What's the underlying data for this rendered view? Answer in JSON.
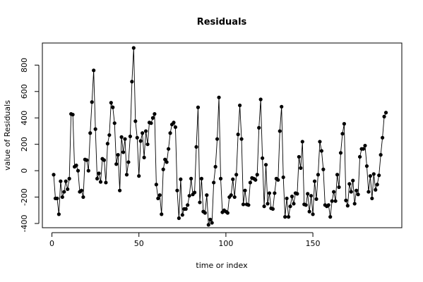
{
  "chart_data": {
    "type": "line",
    "title": "Residuals",
    "xlabel": "time or index",
    "ylabel": "value of Residuals",
    "xlim": [
      1,
      193
    ],
    "ylim": [
      -400,
      930
    ],
    "x_ticks": [
      0,
      50,
      100,
      150
    ],
    "y_ticks": [
      -400,
      -200,
      0,
      200,
      400,
      600,
      800
    ],
    "grid": false,
    "line_color": "#000000",
    "point_color": "#000000",
    "y_values": [
      -30,
      -210,
      -210,
      -330,
      -80,
      -200,
      -160,
      -80,
      -140,
      -60,
      430,
      425,
      30,
      40,
      0,
      -160,
      -150,
      -200,
      85,
      80,
      0,
      285,
      520,
      760,
      315,
      -60,
      -20,
      -85,
      90,
      80,
      -90,
      205,
      270,
      515,
      480,
      360,
      50,
      120,
      -150,
      255,
      140,
      240,
      -30,
      65,
      260,
      675,
      930,
      375,
      250,
      -40,
      225,
      285,
      100,
      300,
      200,
      365,
      360,
      400,
      430,
      -105,
      -210,
      -185,
      -330,
      10,
      85,
      65,
      165,
      285,
      350,
      365,
      330,
      -150,
      -360,
      -65,
      -335,
      -290,
      -290,
      -260,
      -190,
      -60,
      -180,
      -165,
      180,
      480,
      -240,
      -60,
      -310,
      -320,
      -185,
      -410,
      -370,
      -395,
      -90,
      30,
      240,
      555,
      -60,
      -315,
      -300,
      -310,
      -320,
      -200,
      -185,
      -65,
      -200,
      -30,
      275,
      495,
      240,
      -255,
      -150,
      -255,
      -260,
      -90,
      -55,
      -60,
      -70,
      -30,
      325,
      540,
      95,
      -270,
      45,
      -250,
      -170,
      -285,
      -290,
      -170,
      -60,
      -70,
      300,
      485,
      -50,
      -350,
      -210,
      -350,
      -270,
      -195,
      -250,
      -170,
      -175,
      105,
      20,
      220,
      -255,
      -260,
      -175,
      -310,
      -190,
      -330,
      -80,
      -215,
      -30,
      220,
      150,
      10,
      -260,
      -270,
      -260,
      -350,
      -230,
      -160,
      -230,
      -30,
      -125,
      135,
      280,
      355,
      -225,
      -265,
      -100,
      -160,
      -75,
      -250,
      -150,
      -180,
      105,
      165,
      165,
      190,
      35,
      -160,
      -40,
      -210,
      -25,
      -145,
      -105,
      -35,
      120,
      250,
      410,
      440
    ]
  }
}
